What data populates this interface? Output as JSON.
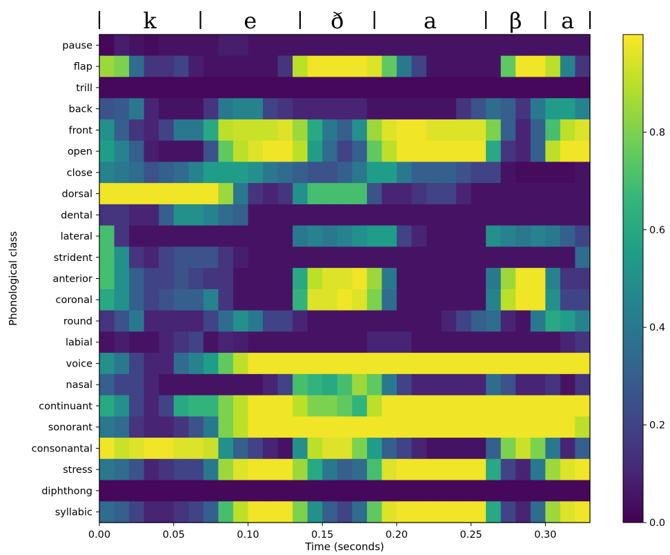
{
  "chart_data": {
    "type": "heatmap",
    "title": "",
    "xlabel": "Time (seconds)",
    "ylabel": "Phonological class",
    "xlim": [
      0.0,
      0.33
    ],
    "x_ticks": [
      {
        "value": 0.0,
        "label": "0.00"
      },
      {
        "value": 0.05,
        "label": "0.05"
      },
      {
        "value": 0.1,
        "label": "0.10"
      },
      {
        "value": 0.15,
        "label": "0.15"
      },
      {
        "value": 0.2,
        "label": "0.20"
      },
      {
        "value": 0.25,
        "label": "0.25"
      },
      {
        "value": 0.3,
        "label": "0.30"
      }
    ],
    "colorbar": {
      "range": [
        0.0,
        1.0
      ],
      "ticks": [
        {
          "value": 0.0,
          "label": "0.0"
        },
        {
          "value": 0.2,
          "label": "0.2"
        },
        {
          "value": 0.4,
          "label": "0.4"
        },
        {
          "value": 0.6,
          "label": "0.6"
        },
        {
          "value": 0.8,
          "label": "0.8"
        }
      ],
      "colormap": "viridis"
    },
    "colormap_stops": [
      "#440154",
      "#482878",
      "#3e4a89",
      "#31688e",
      "#26828e",
      "#1f9e89",
      "#35b779",
      "#6ece58",
      "#b5de2b",
      "#fde725"
    ],
    "phones": [
      {
        "symbol": "k",
        "start": 0.0,
        "end": 0.068
      },
      {
        "symbol": "e",
        "start": 0.068,
        "end": 0.135
      },
      {
        "symbol": "ð",
        "start": 0.135,
        "end": 0.185
      },
      {
        "symbol": "a",
        "start": 0.185,
        "end": 0.26
      },
      {
        "symbol": "β",
        "start": 0.26,
        "end": 0.3
      },
      {
        "symbol": "a",
        "start": 0.3,
        "end": 0.33
      }
    ],
    "phone_boundaries": [
      0.0,
      0.068,
      0.135,
      0.185,
      0.26,
      0.3,
      0.33
    ],
    "frame_count": 33,
    "rows": [
      {
        "name": "pause",
        "values": [
          0.02,
          0.08,
          0.05,
          0.03,
          0.05,
          0.05,
          0.05,
          0.05,
          0.08,
          0.08,
          0.05,
          0.05,
          0.05,
          0.05,
          0.05,
          0.05,
          0.05,
          0.05,
          0.05,
          0.05,
          0.05,
          0.05,
          0.05,
          0.05,
          0.05,
          0.05,
          0.05,
          0.05,
          0.05,
          0.05,
          0.05,
          0.05,
          0.05
        ]
      },
      {
        "name": "flap",
        "values": [
          0.85,
          0.8,
          0.35,
          0.15,
          0.15,
          0.2,
          0.08,
          0.05,
          0.05,
          0.05,
          0.05,
          0.05,
          0.15,
          0.9,
          0.98,
          0.98,
          0.98,
          0.98,
          0.95,
          0.75,
          0.4,
          0.2,
          0.05,
          0.05,
          0.05,
          0.05,
          0.05,
          0.75,
          0.98,
          0.98,
          0.9,
          0.45,
          0.15
        ]
      },
      {
        "name": "trill",
        "values": [
          0.02,
          0.02,
          0.02,
          0.02,
          0.02,
          0.02,
          0.02,
          0.02,
          0.02,
          0.02,
          0.02,
          0.02,
          0.02,
          0.02,
          0.02,
          0.02,
          0.02,
          0.02,
          0.02,
          0.02,
          0.02,
          0.02,
          0.02,
          0.02,
          0.02,
          0.02,
          0.02,
          0.02,
          0.02,
          0.02,
          0.02,
          0.02,
          0.02
        ]
      },
      {
        "name": "back",
        "values": [
          0.25,
          0.28,
          0.4,
          0.1,
          0.05,
          0.05,
          0.05,
          0.15,
          0.4,
          0.45,
          0.45,
          0.2,
          0.15,
          0.1,
          0.1,
          0.1,
          0.1,
          0.1,
          0.05,
          0.05,
          0.05,
          0.05,
          0.05,
          0.05,
          0.15,
          0.25,
          0.35,
          0.3,
          0.15,
          0.4,
          0.55,
          0.55,
          0.45
        ]
      },
      {
        "name": "front",
        "values": [
          0.5,
          0.3,
          0.15,
          0.1,
          0.2,
          0.4,
          0.4,
          0.6,
          0.9,
          0.92,
          0.92,
          0.92,
          0.95,
          0.85,
          0.6,
          0.4,
          0.3,
          0.5,
          0.85,
          0.95,
          0.98,
          0.98,
          0.95,
          0.95,
          0.95,
          0.95,
          0.8,
          0.3,
          0.1,
          0.3,
          0.7,
          0.9,
          0.95
        ]
      },
      {
        "name": "open",
        "values": [
          0.55,
          0.45,
          0.3,
          0.08,
          0.05,
          0.05,
          0.05,
          0.25,
          0.75,
          0.9,
          0.95,
          0.98,
          0.98,
          0.9,
          0.55,
          0.35,
          0.2,
          0.3,
          0.75,
          0.9,
          0.98,
          0.98,
          0.98,
          0.98,
          0.98,
          0.98,
          0.6,
          0.15,
          0.1,
          0.3,
          0.9,
          0.98,
          0.98
        ]
      },
      {
        "name": "close",
        "values": [
          0.45,
          0.4,
          0.35,
          0.25,
          0.3,
          0.35,
          0.45,
          0.55,
          0.55,
          0.55,
          0.5,
          0.4,
          0.35,
          0.3,
          0.25,
          0.25,
          0.3,
          0.4,
          0.55,
          0.55,
          0.4,
          0.3,
          0.3,
          0.3,
          0.25,
          0.2,
          0.2,
          0.05,
          0.03,
          0.03,
          0.03,
          0.03,
          0.05
        ]
      },
      {
        "name": "dorsal",
        "values": [
          0.98,
          0.98,
          0.98,
          0.98,
          0.98,
          0.98,
          0.98,
          0.98,
          0.85,
          0.4,
          0.15,
          0.1,
          0.15,
          0.5,
          0.7,
          0.7,
          0.7,
          0.7,
          0.25,
          0.1,
          0.1,
          0.15,
          0.2,
          0.2,
          0.1,
          0.05,
          0.05,
          0.05,
          0.05,
          0.05,
          0.05,
          0.05,
          0.05
        ]
      },
      {
        "name": "dental",
        "values": [
          0.15,
          0.15,
          0.1,
          0.1,
          0.3,
          0.5,
          0.5,
          0.45,
          0.35,
          0.3,
          0.05,
          0.05,
          0.05,
          0.05,
          0.05,
          0.05,
          0.05,
          0.05,
          0.05,
          0.05,
          0.05,
          0.05,
          0.05,
          0.05,
          0.05,
          0.05,
          0.05,
          0.05,
          0.05,
          0.05,
          0.05,
          0.05,
          0.05
        ]
      },
      {
        "name": "lateral",
        "values": [
          0.7,
          0.15,
          0.05,
          0.05,
          0.05,
          0.05,
          0.05,
          0.05,
          0.05,
          0.05,
          0.05,
          0.05,
          0.05,
          0.4,
          0.45,
          0.4,
          0.45,
          0.5,
          0.55,
          0.55,
          0.2,
          0.1,
          0.05,
          0.05,
          0.05,
          0.05,
          0.5,
          0.45,
          0.4,
          0.45,
          0.4,
          0.3,
          0.2
        ]
      },
      {
        "name": "strident",
        "values": [
          0.7,
          0.5,
          0.15,
          0.1,
          0.2,
          0.25,
          0.25,
          0.25,
          0.15,
          0.08,
          0.05,
          0.05,
          0.05,
          0.05,
          0.05,
          0.05,
          0.05,
          0.05,
          0.05,
          0.05,
          0.05,
          0.05,
          0.05,
          0.05,
          0.05,
          0.05,
          0.05,
          0.05,
          0.05,
          0.05,
          0.05,
          0.05,
          0.35
        ]
      },
      {
        "name": "anterior",
        "values": [
          0.7,
          0.5,
          0.3,
          0.2,
          0.2,
          0.25,
          0.2,
          0.15,
          0.15,
          0.05,
          0.05,
          0.05,
          0.05,
          0.6,
          0.9,
          0.95,
          0.95,
          0.98,
          0.85,
          0.4,
          0.05,
          0.05,
          0.05,
          0.05,
          0.05,
          0.05,
          0.4,
          0.85,
          0.98,
          0.98,
          0.45,
          0.15,
          0.15
        ]
      },
      {
        "name": "coronal",
        "values": [
          0.6,
          0.5,
          0.3,
          0.2,
          0.25,
          0.3,
          0.3,
          0.45,
          0.15,
          0.05,
          0.05,
          0.05,
          0.05,
          0.65,
          0.95,
          0.95,
          0.98,
          0.95,
          0.8,
          0.35,
          0.05,
          0.05,
          0.05,
          0.05,
          0.05,
          0.05,
          0.45,
          0.9,
          0.98,
          0.98,
          0.5,
          0.2,
          0.2
        ]
      },
      {
        "name": "round",
        "values": [
          0.15,
          0.25,
          0.4,
          0.1,
          0.1,
          0.1,
          0.1,
          0.2,
          0.35,
          0.5,
          0.4,
          0.2,
          0.2,
          0.1,
          0.05,
          0.05,
          0.05,
          0.05,
          0.05,
          0.05,
          0.05,
          0.05,
          0.05,
          0.1,
          0.2,
          0.3,
          0.35,
          0.1,
          0.05,
          0.4,
          0.6,
          0.55,
          0.45
        ]
      },
      {
        "name": "labial",
        "values": [
          0.05,
          0.08,
          0.05,
          0.05,
          0.1,
          0.15,
          0.2,
          0.05,
          0.1,
          0.08,
          0.05,
          0.05,
          0.05,
          0.05,
          0.05,
          0.05,
          0.05,
          0.05,
          0.1,
          0.1,
          0.1,
          0.05,
          0.05,
          0.05,
          0.05,
          0.05,
          0.05,
          0.05,
          0.05,
          0.05,
          0.05,
          0.1,
          0.15
        ]
      },
      {
        "name": "voice",
        "values": [
          0.5,
          0.4,
          0.2,
          0.1,
          0.1,
          0.35,
          0.45,
          0.55,
          0.75,
          0.9,
          0.98,
          0.98,
          0.98,
          0.98,
          0.98,
          0.98,
          0.98,
          0.98,
          0.98,
          0.98,
          0.98,
          0.98,
          0.98,
          0.98,
          0.98,
          0.98,
          0.98,
          0.98,
          0.98,
          0.98,
          0.98,
          0.98,
          0.98
        ]
      },
      {
        "name": "nasal",
        "values": [
          0.3,
          0.2,
          0.2,
          0.1,
          0.05,
          0.05,
          0.05,
          0.05,
          0.05,
          0.05,
          0.05,
          0.1,
          0.2,
          0.7,
          0.65,
          0.6,
          0.7,
          0.85,
          0.75,
          0.4,
          0.2,
          0.1,
          0.1,
          0.1,
          0.1,
          0.1,
          0.35,
          0.25,
          0.1,
          0.1,
          0.15,
          0.05,
          0.15
        ]
      },
      {
        "name": "continuant",
        "values": [
          0.6,
          0.5,
          0.2,
          0.1,
          0.2,
          0.6,
          0.65,
          0.65,
          0.8,
          0.9,
          0.98,
          0.98,
          0.98,
          0.9,
          0.8,
          0.8,
          0.75,
          0.65,
          0.9,
          0.98,
          0.98,
          0.98,
          0.98,
          0.98,
          0.98,
          0.98,
          0.98,
          0.98,
          0.98,
          0.98,
          0.98,
          0.98,
          0.98
        ]
      },
      {
        "name": "sonorant",
        "values": [
          0.4,
          0.35,
          0.15,
          0.1,
          0.1,
          0.15,
          0.25,
          0.4,
          0.8,
          0.9,
          0.98,
          0.98,
          0.98,
          0.98,
          0.98,
          0.98,
          0.98,
          0.98,
          0.98,
          0.98,
          0.98,
          0.98,
          0.98,
          0.98,
          0.98,
          0.98,
          0.98,
          0.98,
          0.98,
          0.98,
          0.98,
          0.98,
          0.9
        ]
      },
      {
        "name": "consonantal",
        "values": [
          0.98,
          0.92,
          0.95,
          0.98,
          0.98,
          0.95,
          0.95,
          0.92,
          0.5,
          0.3,
          0.2,
          0.1,
          0.05,
          0.5,
          0.9,
          0.95,
          0.95,
          0.8,
          0.55,
          0.3,
          0.2,
          0.1,
          0.05,
          0.05,
          0.05,
          0.05,
          0.3,
          0.8,
          0.92,
          0.8,
          0.4,
          0.1,
          0.3
        ]
      },
      {
        "name": "stress",
        "values": [
          0.4,
          0.35,
          0.25,
          0.1,
          0.15,
          0.2,
          0.2,
          0.4,
          0.85,
          0.95,
          0.98,
          0.98,
          0.98,
          0.85,
          0.6,
          0.4,
          0.3,
          0.35,
          0.7,
          0.95,
          0.98,
          0.98,
          0.98,
          0.98,
          0.98,
          0.98,
          0.6,
          0.2,
          0.1,
          0.4,
          0.85,
          0.95,
          0.98
        ]
      },
      {
        "name": "diphthong",
        "values": [
          0.02,
          0.02,
          0.02,
          0.02,
          0.02,
          0.02,
          0.02,
          0.02,
          0.02,
          0.02,
          0.02,
          0.02,
          0.02,
          0.02,
          0.02,
          0.02,
          0.02,
          0.02,
          0.02,
          0.02,
          0.02,
          0.02,
          0.02,
          0.02,
          0.02,
          0.02,
          0.02,
          0.02,
          0.02,
          0.02,
          0.02,
          0.02,
          0.02
        ]
      },
      {
        "name": "syllabic",
        "values": [
          0.35,
          0.3,
          0.2,
          0.1,
          0.1,
          0.15,
          0.2,
          0.3,
          0.7,
          0.9,
          0.98,
          0.98,
          0.98,
          0.8,
          0.5,
          0.3,
          0.2,
          0.35,
          0.75,
          0.95,
          0.98,
          0.98,
          0.98,
          0.98,
          0.98,
          0.98,
          0.6,
          0.2,
          0.1,
          0.35,
          0.85,
          0.95,
          0.98
        ]
      }
    ]
  }
}
